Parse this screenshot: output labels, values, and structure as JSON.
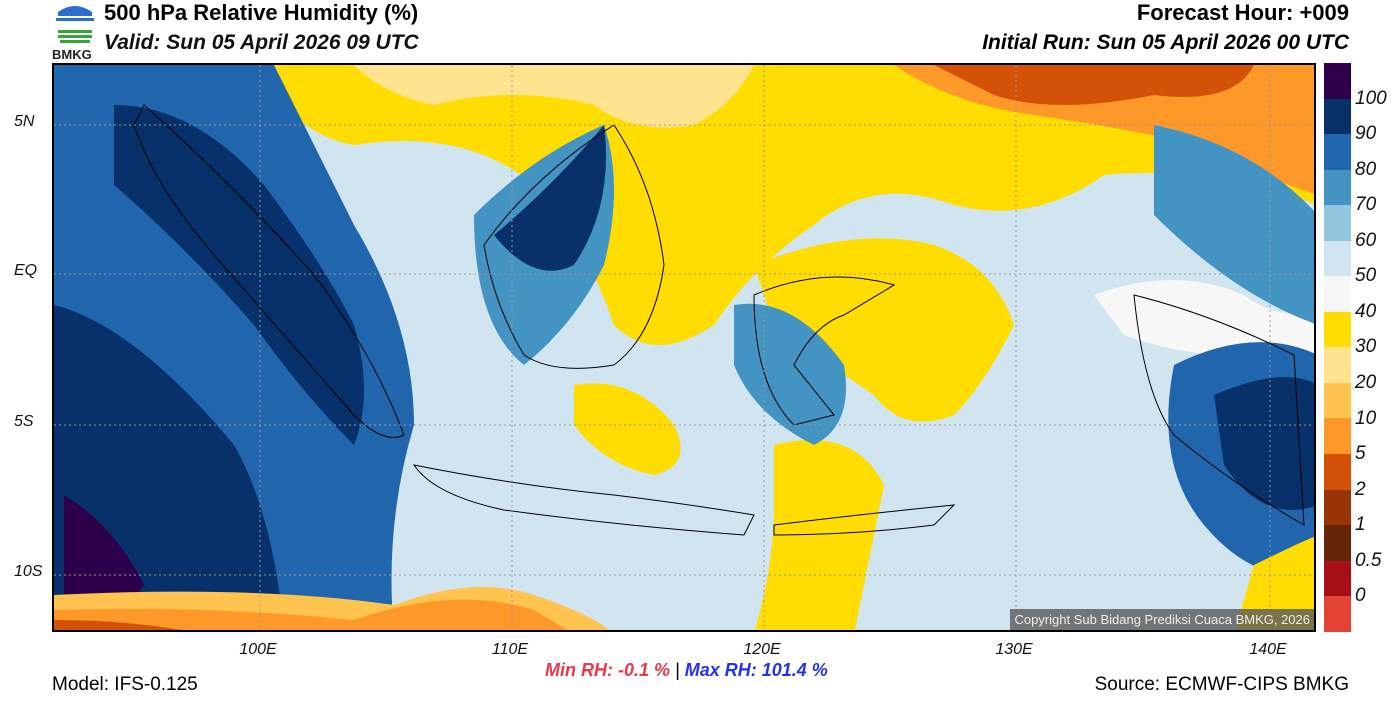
{
  "header": {
    "title": "500 hPa Relative Humidity (%)",
    "valid": "Valid: Sun 05 April 2026 09 UTC",
    "forecast_hour": "Forecast Hour: +009",
    "initial_run": "Initial Run: Sun 05 April 2026 00 UTC"
  },
  "logo": {
    "text": "BMKG"
  },
  "axes": {
    "lat_labels": [
      "5N",
      "EQ",
      "5S",
      "10S"
    ],
    "lon_labels": [
      "100E",
      "110E",
      "120E",
      "130E",
      "140E"
    ]
  },
  "colorbar": {
    "labels": [
      "100",
      "90",
      "80",
      "70",
      "60",
      "50",
      "40",
      "30",
      "20",
      "10",
      "5",
      "2",
      "1",
      "0.5",
      "0"
    ],
    "colors": [
      "#2d004b",
      "#08306b",
      "#2166ac",
      "#4393c3",
      "#92c5de",
      "#d1e5f0",
      "#f7f7f7",
      "#ffdd00",
      "#ffe38f",
      "#fec44f",
      "#fe9929",
      "#d45208",
      "#993404",
      "#662506",
      "#a50f15",
      "#e34234"
    ]
  },
  "copyright": "Copyright Sub Bidang Prediksi Cuaca BMKG, 2026",
  "stats": {
    "min": "Min RH:  -0.1 %",
    "sep": "|",
    "max": "Max RH: 101.4 %"
  },
  "footer": {
    "model": "Model: IFS-0.125",
    "source": "Source: ECMWF-CIPS BMKG"
  }
}
